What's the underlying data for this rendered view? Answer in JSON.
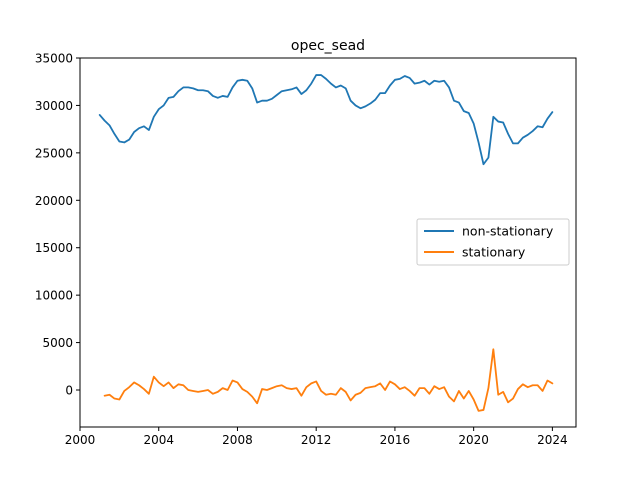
{
  "chart_data": {
    "type": "line",
    "title": "opec_sead",
    "xlabel": "",
    "ylabel": "",
    "xlim": [
      2000.0,
      2025.2
    ],
    "ylim": [
      -3900,
      35000
    ],
    "xticks": [
      2000,
      2004,
      2008,
      2012,
      2016,
      2020,
      2024
    ],
    "xtick_labels": [
      "2000",
      "2004",
      "2008",
      "2012",
      "2016",
      "2020",
      "2024"
    ],
    "yticks": [
      0,
      5000,
      10000,
      15000,
      20000,
      25000,
      30000,
      35000
    ],
    "ytick_labels": [
      "0",
      "5000",
      "10000",
      "15000",
      "20000",
      "25000",
      "30000",
      "35000"
    ],
    "grid": false,
    "legend_position": "center-right",
    "series": [
      {
        "name": "non-stationary",
        "color": "#1f77b4",
        "x": [
          2001.0,
          2001.25,
          2001.5,
          2001.75,
          2002.0,
          2002.25,
          2002.5,
          2002.75,
          2003.0,
          2003.25,
          2003.5,
          2003.75,
          2004.0,
          2004.25,
          2004.5,
          2004.75,
          2005.0,
          2005.25,
          2005.5,
          2005.75,
          2006.0,
          2006.25,
          2006.5,
          2006.75,
          2007.0,
          2007.25,
          2007.5,
          2007.75,
          2008.0,
          2008.25,
          2008.5,
          2008.75,
          2009.0,
          2009.25,
          2009.5,
          2009.75,
          2010.0,
          2010.25,
          2010.5,
          2010.75,
          2011.0,
          2011.25,
          2011.5,
          2011.75,
          2012.0,
          2012.25,
          2012.5,
          2012.75,
          2013.0,
          2013.25,
          2013.5,
          2013.75,
          2014.0,
          2014.25,
          2014.5,
          2014.75,
          2015.0,
          2015.25,
          2015.5,
          2015.75,
          2016.0,
          2016.25,
          2016.5,
          2016.75,
          2017.0,
          2017.25,
          2017.5,
          2017.75,
          2018.0,
          2018.25,
          2018.5,
          2018.75,
          2019.0,
          2019.25,
          2019.5,
          2019.75,
          2020.0,
          2020.25,
          2020.5,
          2020.75,
          2021.0,
          2021.25,
          2021.5,
          2021.75,
          2022.0,
          2022.25,
          2022.5,
          2022.75,
          2023.0,
          2023.25,
          2023.5,
          2023.75,
          2024.0
        ],
        "y": [
          29000,
          28400,
          27900,
          27000,
          26200,
          26100,
          26400,
          27200,
          27600,
          27800,
          27400,
          28800,
          29600,
          30000,
          30800,
          30900,
          31500,
          31900,
          31900,
          31800,
          31600,
          31600,
          31500,
          31000,
          30800,
          31000,
          30900,
          31900,
          32600,
          32700,
          32600,
          31800,
          30300,
          30500,
          30500,
          30700,
          31100,
          31500,
          31600,
          31700,
          31900,
          31200,
          31600,
          32300,
          33200,
          33200,
          32800,
          32300,
          31900,
          32100,
          31800,
          30500,
          30000,
          29700,
          29900,
          30200,
          30600,
          31300,
          31300,
          32100,
          32700,
          32800,
          33100,
          32900,
          32300,
          32400,
          32600,
          32200,
          32600,
          32500,
          32600,
          31900,
          30500,
          30300,
          29400,
          29200,
          28100,
          26100,
          23800,
          24500,
          28800,
          28300,
          28200,
          27000,
          26000,
          26000,
          26600,
          26900,
          27300,
          27800,
          27700,
          28600,
          29300
        ]
      },
      {
        "name": "stationary",
        "color": "#ff7f0e",
        "x": [
          2001.25,
          2001.5,
          2001.75,
          2002.0,
          2002.25,
          2002.5,
          2002.75,
          2003.0,
          2003.25,
          2003.5,
          2003.75,
          2004.0,
          2004.25,
          2004.5,
          2004.75,
          2005.0,
          2005.25,
          2005.5,
          2005.75,
          2006.0,
          2006.25,
          2006.5,
          2006.75,
          2007.0,
          2007.25,
          2007.5,
          2007.75,
          2008.0,
          2008.25,
          2008.5,
          2008.75,
          2009.0,
          2009.25,
          2009.5,
          2009.75,
          2010.0,
          2010.25,
          2010.5,
          2010.75,
          2011.0,
          2011.25,
          2011.5,
          2011.75,
          2012.0,
          2012.25,
          2012.5,
          2012.75,
          2013.0,
          2013.25,
          2013.5,
          2013.75,
          2014.0,
          2014.25,
          2014.5,
          2014.75,
          2015.0,
          2015.25,
          2015.5,
          2015.75,
          2016.0,
          2016.25,
          2016.5,
          2016.75,
          2017.0,
          2017.25,
          2017.5,
          2017.75,
          2018.0,
          2018.25,
          2018.5,
          2018.75,
          2019.0,
          2019.25,
          2019.5,
          2019.75,
          2020.0,
          2020.25,
          2020.5,
          2020.75,
          2021.0,
          2021.25,
          2021.5,
          2021.75,
          2022.0,
          2022.25,
          2022.5,
          2022.75,
          2023.0,
          2023.25,
          2023.5,
          2023.75,
          2024.0
        ],
        "y": [
          -600,
          -500,
          -900,
          -1000,
          -100,
          300,
          800,
          500,
          100,
          -400,
          1400,
          800,
          400,
          800,
          200,
          600,
          500,
          0,
          -100,
          -200,
          -100,
          0,
          -400,
          -200,
          200,
          0,
          1000,
          800,
          100,
          -200,
          -700,
          -1400,
          100,
          0,
          200,
          400,
          500,
          200,
          100,
          200,
          -600,
          300,
          700,
          900,
          -100,
          -500,
          -400,
          -500,
          200,
          -200,
          -1100,
          -500,
          -300,
          200,
          300,
          400,
          700,
          0,
          900,
          600,
          100,
          300,
          -100,
          -600,
          200,
          200,
          -400,
          400,
          100,
          300,
          -700,
          -1200,
          -100,
          -900,
          -100,
          -1000,
          -2200,
          -2100,
          200,
          4300,
          -500,
          -200,
          -1300,
          -900,
          100,
          600,
          300,
          500,
          500,
          -100,
          1000,
          700
        ]
      }
    ]
  }
}
